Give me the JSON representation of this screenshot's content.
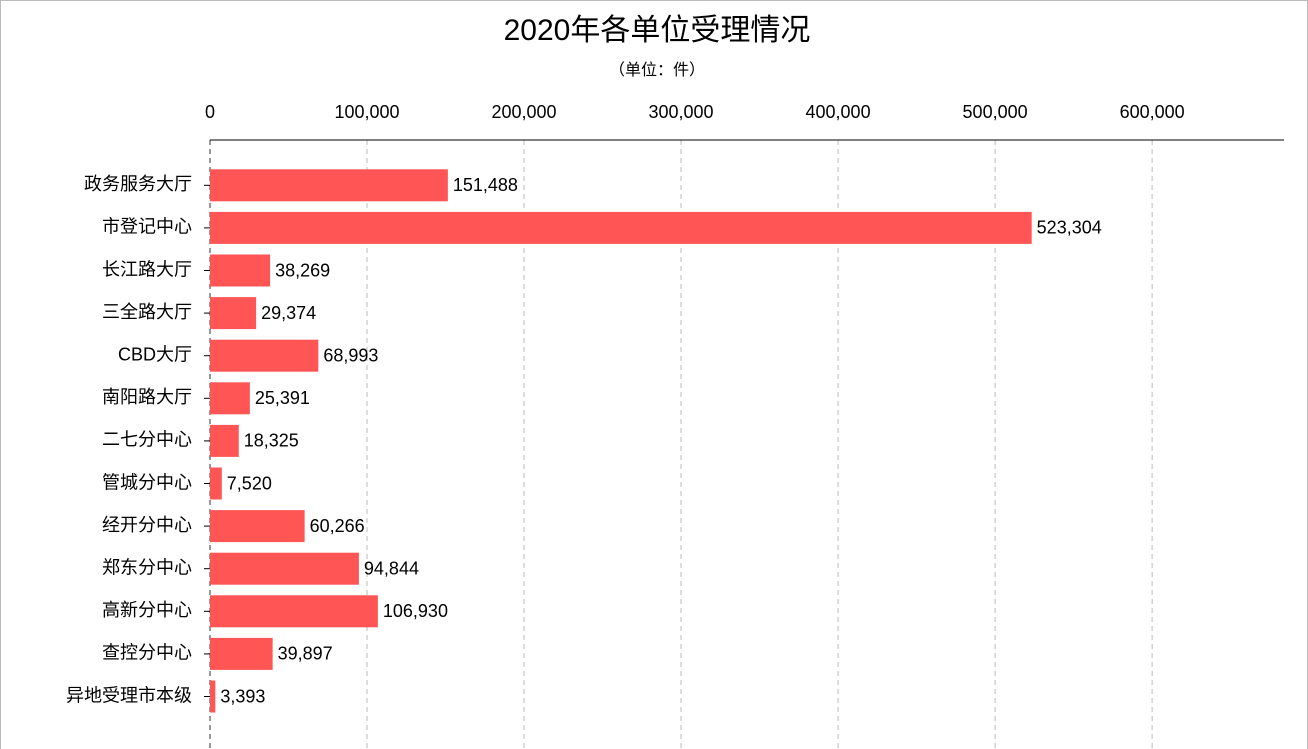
{
  "chart_data": {
    "type": "bar",
    "orientation": "horizontal",
    "title": "2020年各单位受理情况",
    "subtitle": "（单位：件）",
    "categories": [
      "政务服务大厅",
      "市登记中心",
      "长江路大厅",
      "三全路大厅",
      "CBD大厅",
      "南阳路大厅",
      "二七分中心",
      "管城分中心",
      "经开分中心",
      "郑东分中心",
      "高新分中心",
      "查控分中心",
      "异地受理市本级"
    ],
    "values": [
      151488,
      523304,
      38269,
      29374,
      68993,
      25391,
      18325,
      7520,
      60266,
      94844,
      106930,
      39897,
      3393
    ],
    "value_labels": [
      "151,488",
      "523,304",
      "38,269",
      "29,374",
      "68,993",
      "25,391",
      "18,325",
      "7,520",
      "60,266",
      "94,844",
      "106,930",
      "39,897",
      "3,393"
    ],
    "color": "#ff5555",
    "xlim": [
      0,
      684000
    ],
    "xticks": [
      0,
      {
        "value": 100000,
        "label": "100,000"
      },
      {
        "value": 200000,
        "label": "200,000"
      },
      {
        "value": 300000,
        "label": "300,000"
      },
      {
        "value": 400000,
        "label": "400,000"
      },
      {
        "value": 500000,
        "label": "500,000"
      },
      {
        "value": 600000,
        "label": "600,000"
      }
    ],
    "grid": true
  }
}
